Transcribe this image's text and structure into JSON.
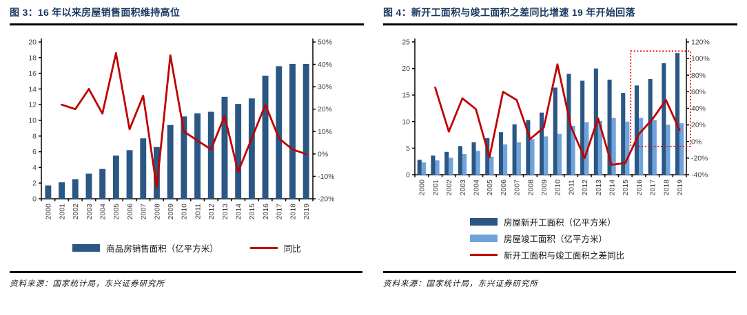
{
  "colors": {
    "title_navy": "#17375E",
    "bar_dark": "#2A5783",
    "bar_light": "#6FA3DC",
    "line_red": "#C00000",
    "annotation_red": "#FF0000",
    "axis_text": "#404040",
    "rule_black": "#000000"
  },
  "panels": [
    {
      "title": "图 3：16 年以来房屋销售面积维持高位",
      "source": "资料来源：国家统计局，东兴证券研究所",
      "legend": [
        {
          "type": "bar",
          "color": "#2A5783",
          "label": "商品房销售面积（亿平方米）"
        },
        {
          "type": "line",
          "color": "#C00000",
          "label": "同比"
        }
      ]
    },
    {
      "title": "图 4：新开工面积与竣工面积之差同比增速 19 年开始回落",
      "source": "资料来源：国家统计局，东兴证券研究所",
      "legend": [
        {
          "type": "bar",
          "color": "#2A5783",
          "label": "房屋新开工面积（亿平方米）"
        },
        {
          "type": "bar",
          "color": "#6FA3DC",
          "label": "房屋竣工面积（亿平方米）"
        },
        {
          "type": "line",
          "color": "#C00000",
          "label": "新开工面积与竣工面积之差同比"
        }
      ]
    }
  ],
  "chart_data": [
    {
      "type": "bar",
      "title": "图 3：16 年以来房屋销售面积维持高位",
      "categories": [
        "2000",
        "2001",
        "2002",
        "2003",
        "2004",
        "2005",
        "2006",
        "2007",
        "2008",
        "2009",
        "2010",
        "2011",
        "2012",
        "2013",
        "2014",
        "2015",
        "2016",
        "2017",
        "2018",
        "2019"
      ],
      "left_axis": {
        "min": 0,
        "max": 20,
        "step": 2,
        "label": "商品房销售面积（亿平方米）"
      },
      "right_axis": {
        "min": -20,
        "max": 50,
        "step": 10,
        "format": "percent",
        "label": "同比"
      },
      "grid": false,
      "legend_position": "bottom",
      "series": [
        {
          "name": "商品房销售面积（亿平方米）",
          "type": "bar",
          "axis": "left",
          "color": "#2A5783",
          "values": [
            1.7,
            2.1,
            2.5,
            3.2,
            3.8,
            5.5,
            6.2,
            7.7,
            6.6,
            9.4,
            10.5,
            10.9,
            11.1,
            13.0,
            12.1,
            12.8,
            15.7,
            16.9,
            17.2,
            17.2
          ]
        },
        {
          "name": "同比",
          "type": "line",
          "axis": "right",
          "color": "#C00000",
          "unit": "%",
          "values": [
            null,
            22,
            20,
            29,
            18,
            45,
            11,
            26,
            -15,
            44,
            10,
            6,
            2,
            17,
            -8,
            7,
            22,
            7,
            2,
            0
          ]
        }
      ]
    },
    {
      "type": "bar",
      "title": "图 4：新开工面积与竣工面积之差同比增速 19 年开始回落",
      "categories": [
        "2000",
        "2001",
        "2002",
        "2003",
        "2004",
        "2005",
        "2006",
        "2007",
        "2008",
        "2009",
        "2010",
        "2011",
        "2012",
        "2013",
        "2014",
        "2015",
        "2016",
        "2017",
        "2018",
        "2019"
      ],
      "left_axis": {
        "min": 0,
        "max": 25,
        "step": 5,
        "label": "面积（亿平方米）"
      },
      "right_axis": {
        "min": -40,
        "max": 120,
        "step": 20,
        "format": "percent",
        "label": "新开工面积与竣工面积之差同比"
      },
      "grid": false,
      "legend_position": "bottom",
      "series": [
        {
          "name": "房屋新开工面积（亿平方米）",
          "type": "bar",
          "axis": "left",
          "color": "#2A5783",
          "values": [
            2.8,
            3.6,
            4.3,
            5.4,
            6.1,
            6.9,
            8.0,
            9.5,
            10.3,
            11.7,
            16.4,
            19.0,
            17.7,
            20.0,
            17.9,
            15.4,
            16.8,
            18.0,
            21.0,
            22.9
          ]
        },
        {
          "name": "房屋竣工面积（亿平方米）",
          "type": "bar",
          "axis": "left",
          "color": "#6FA3DC",
          "values": [
            2.3,
            2.7,
            3.2,
            3.9,
            4.5,
            3.4,
            5.7,
            6.1,
            6.7,
            7.2,
            7.7,
            9.2,
            9.9,
            10.1,
            10.7,
            10.0,
            10.7,
            10.3,
            9.4,
            9.7
          ]
        },
        {
          "name": "新开工面积与竣工面积之差同比",
          "type": "line",
          "axis": "right",
          "color": "#C00000",
          "unit": "%",
          "values": [
            null,
            65,
            12,
            52,
            39,
            -19,
            60,
            50,
            3,
            17,
            93,
            18,
            -20,
            28,
            -28,
            -26,
            9,
            27,
            50,
            14
          ]
        }
      ],
      "annotation": {
        "type": "dotted-rect",
        "note": "highlight 2016-2019",
        "color": "#FF0000",
        "x_start_band": 15.9,
        "x_end_offset": 6,
        "pct_top": 109,
        "pct_bottom": -6
      }
    }
  ]
}
